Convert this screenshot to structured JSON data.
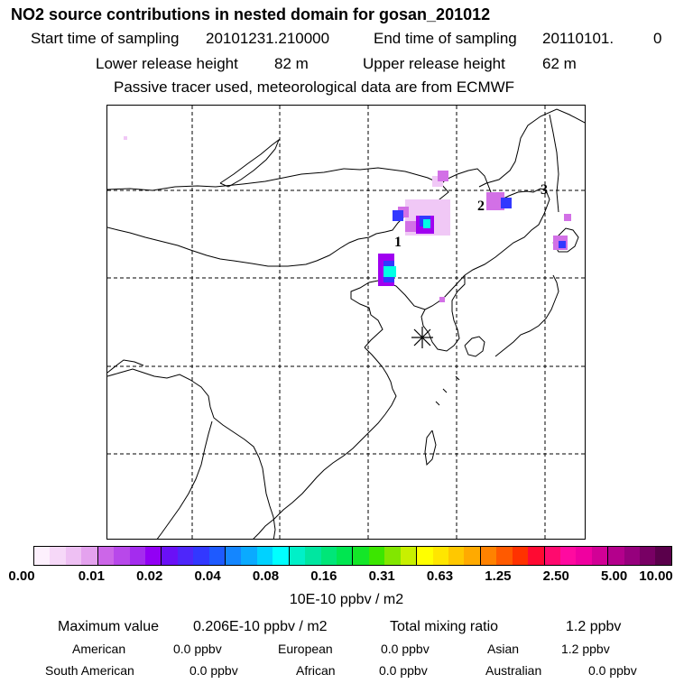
{
  "title": "NO2 source contributions in nested domain for gosan_201012",
  "header": {
    "start_label": "Start time of sampling",
    "start_value": "20101231.210000",
    "end_label": "End time of sampling",
    "end_value": "20110101.",
    "end_extra": "0",
    "lower_label": "Lower release height",
    "lower_value": "82 m",
    "upper_label": "Upper release height",
    "upper_value": "62 m",
    "note": "Passive tracer used, meteorological data are from ECMWF"
  },
  "map": {
    "point_labels": [
      "1",
      "2",
      "3"
    ],
    "receptor_marker": "asterisk-icon",
    "plume_colors": {
      "light": "#f0c8f6",
      "mid": "#d270e6",
      "violet": "#a000f0",
      "blue": "#3238ff",
      "cyan": "#00ffe6"
    }
  },
  "colorbar": {
    "colors": [
      "#fdf0fd",
      "#f6d8f8",
      "#eec0f3",
      "#e4a2ee",
      "#cc66e8",
      "#b848ea",
      "#a42cee",
      "#9200f4",
      "#6a10f6",
      "#4e26fa",
      "#3238ff",
      "#1e5aff",
      "#1486ff",
      "#0aaaff",
      "#00d2ff",
      "#00ffff",
      "#00f0c8",
      "#00e6a0",
      "#00e678",
      "#00e650",
      "#14e628",
      "#3ce600",
      "#82e600",
      "#c8f000",
      "#ffff00",
      "#ffe600",
      "#ffc800",
      "#ffaa00",
      "#ff8200",
      "#ff5a00",
      "#ff3200",
      "#ff0a32",
      "#ff0a6e",
      "#ff0aa0",
      "#f000a0",
      "#d20096",
      "#b4008c",
      "#96007d",
      "#780064",
      "#5a004b"
    ],
    "ticks": [
      "0.00",
      "0.01",
      "0.02",
      "0.04",
      "0.08",
      "0.16",
      "0.31",
      "0.63",
      "1.25",
      "2.50",
      "5.00",
      "10.00"
    ],
    "unit": "10E-10 ppbv / m2"
  },
  "stats": {
    "max_label": "Maximum value",
    "max_value": "0.206E-10 ppbv / m2",
    "total_label": "Total mixing ratio",
    "total_value": "1.2 ppbv"
  },
  "regions": [
    {
      "name": "American",
      "value": "0.0 ppbv"
    },
    {
      "name": "European",
      "value": "0.0 ppbv"
    },
    {
      "name": "Asian",
      "value": "1.2 ppbv"
    },
    {
      "name": "South American",
      "value": "0.0 ppbv"
    },
    {
      "name": "African",
      "value": "0.0 ppbv"
    },
    {
      "name": "Australian",
      "value": "0.0 ppbv"
    }
  ]
}
